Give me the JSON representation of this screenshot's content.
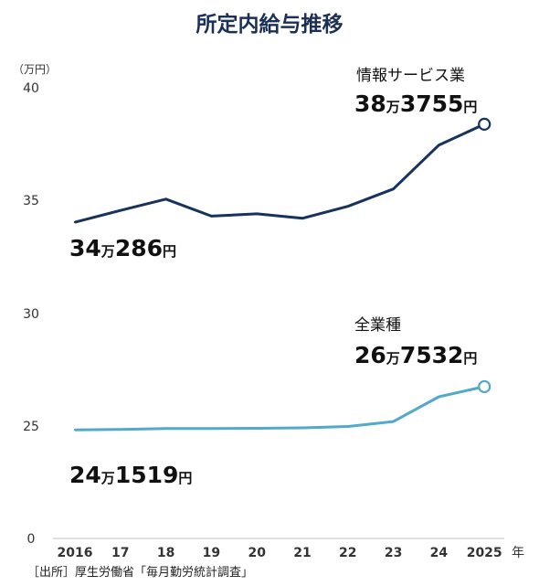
{
  "chart_data": {
    "type": "line",
    "title": "所定内給与推移",
    "unit_label": "（万円）",
    "x_unit": "年",
    "categories": [
      "2016",
      "17",
      "18",
      "19",
      "20",
      "21",
      "22",
      "23",
      "24",
      "2025"
    ],
    "ylim": [
      0,
      40
    ],
    "yticks": [
      "0",
      "25",
      "30",
      "35",
      "40"
    ],
    "grid": false,
    "series": [
      {
        "name": "情報サービス業",
        "color": "#17325c",
        "values": [
          34.03,
          34.55,
          35.05,
          34.3,
          34.4,
          34.2,
          34.73,
          35.5,
          37.45,
          38.38
        ],
        "start_label": {
          "num1": "34",
          "unit1": "万",
          "num2": "286",
          "unit2": "円"
        },
        "end_label": {
          "num1": "38",
          "unit1": "万",
          "num2": "3755",
          "unit2": "円"
        }
      },
      {
        "name": "全業種",
        "color": "#52a9c9",
        "values": [
          24.15,
          24.25,
          24.45,
          24.43,
          24.5,
          24.6,
          24.9,
          25.2,
          26.3,
          26.75
        ],
        "start_label": {
          "num1": "24",
          "unit1": "万",
          "num2": "1519",
          "unit2": "円"
        },
        "end_label": {
          "num1": "26",
          "unit1": "万",
          "num2": "7532",
          "unit2": "円"
        }
      }
    ]
  },
  "source": "［出所］厚生労働省「毎月勤労統計調査」"
}
